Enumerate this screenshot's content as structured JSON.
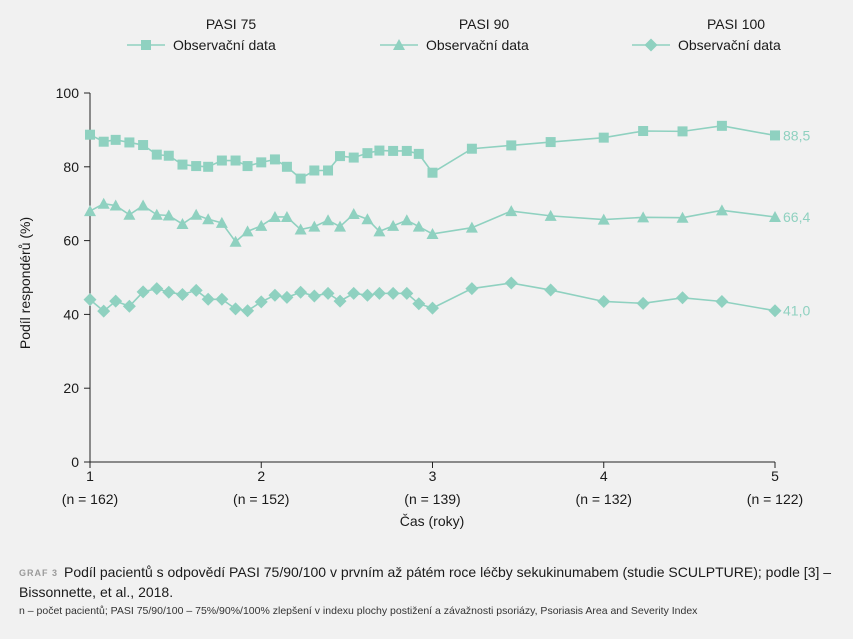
{
  "chart_data": {
    "type": "line",
    "xlabel": "Čas (roky)",
    "ylabel": "Podíl respondérů (%)",
    "xlim": [
      1,
      5
    ],
    "ylim": [
      0,
      100
    ],
    "x_ticks": [
      {
        "value": 1,
        "label": "1",
        "sublabel": "(n = 162)"
      },
      {
        "value": 2,
        "label": "2",
        "sublabel": "(n = 152)"
      },
      {
        "value": 3,
        "label": "3",
        "sublabel": "(n = 139)"
      },
      {
        "value": 4,
        "label": "4",
        "sublabel": "(n = 132)"
      },
      {
        "value": 5,
        "label": "5",
        "sublabel": "(n = 122)"
      }
    ],
    "y_ticks": [
      0,
      20,
      40,
      60,
      80,
      100
    ],
    "grid": false,
    "legend_position": "top",
    "series_color": "#8fd1c0",
    "x": [
      1.0,
      1.08,
      1.15,
      1.23,
      1.31,
      1.39,
      1.46,
      1.54,
      1.62,
      1.69,
      1.77,
      1.85,
      1.92,
      2.0,
      2.08,
      2.15,
      2.23,
      2.31,
      2.39,
      2.46,
      2.54,
      2.62,
      2.69,
      2.77,
      2.85,
      2.92,
      3.0,
      3.23,
      3.46,
      3.69,
      4.0,
      4.23,
      4.46,
      4.69,
      5.0
    ],
    "series": [
      {
        "name": "Observační data",
        "group": "PASI 75",
        "marker": "square",
        "values": [
          88.7,
          86.8,
          87.3,
          86.6,
          85.9,
          83.3,
          83.0,
          80.6,
          80.2,
          80.0,
          81.7,
          81.7,
          80.2,
          81.2,
          82.0,
          80.0,
          76.8,
          79.0,
          79.0,
          82.9,
          82.5,
          83.7,
          84.4,
          84.3,
          84.3,
          83.5,
          78.4,
          84.9,
          85.8,
          86.7,
          87.9,
          89.7,
          89.6,
          91.1,
          88.5
        ],
        "end_label": "88,5"
      },
      {
        "name": "Observační data",
        "group": "PASI 90",
        "marker": "triangle",
        "values": [
          68.0,
          70.0,
          69.5,
          67.0,
          69.5,
          67.0,
          66.8,
          64.5,
          67.0,
          65.8,
          64.8,
          59.7,
          62.5,
          64.0,
          66.4,
          66.4,
          63.0,
          63.8,
          65.5,
          63.8,
          67.2,
          65.8,
          62.5,
          64.0,
          65.5,
          63.8,
          61.8,
          63.5,
          68.0,
          66.7,
          65.7,
          66.3,
          66.2,
          68.2,
          66.4
        ],
        "end_label": "66,4"
      },
      {
        "name": "Observační data",
        "group": "PASI 100",
        "marker": "diamond",
        "values": [
          44.0,
          40.9,
          43.6,
          42.2,
          46.1,
          47.0,
          46.0,
          45.4,
          46.5,
          44.1,
          44.1,
          41.5,
          41.0,
          43.4,
          45.2,
          44.6,
          46.0,
          45.0,
          45.7,
          43.6,
          45.7,
          45.2,
          45.7,
          45.7,
          45.7,
          42.9,
          41.7,
          47.0,
          48.5,
          46.6,
          43.5,
          43.0,
          44.5,
          43.5,
          41.0
        ],
        "end_label": "41,0"
      }
    ]
  },
  "caption": {
    "label": "GRAF 3",
    "text": "Podíl pacientů s odpovědí PASI 75/90/100 v prvním až pátém roce léčby sekukinumabem (studie SCULPTURE); podle [3] – Bissonnette, et al., 2018.",
    "footnote": "n – počet pacientů; PASI 75/90/100 – 75%/90%/100% zlepšení v indexu plochy postižení a závažnosti psoriázy, Psoriasis Area and Severity Index"
  }
}
